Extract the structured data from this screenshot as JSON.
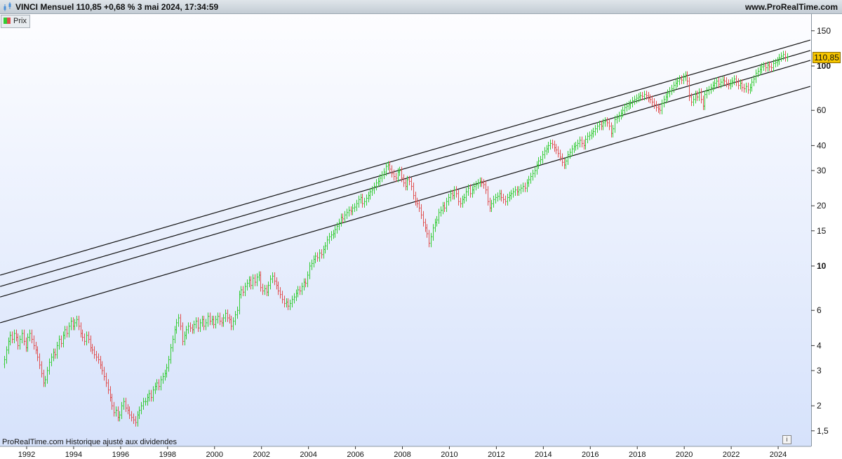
{
  "header": {
    "title": "VINCI Mensuel 110,85 +0,68 % 3 mai 2024, 17:34:59",
    "site": "www.ProRealTime.com"
  },
  "legend": {
    "label": "Prix",
    "colors": [
      "#33cc33",
      "#e05050"
    ]
  },
  "footer": {
    "text": "ProRealTime.com  Historique ajusté aux dividendes",
    "info": "i"
  },
  "last_price_label": "110,85",
  "chart_data": {
    "type": "bar-ohlc",
    "scale": "log",
    "ylim": [
      1.35,
      175
    ],
    "xlim": [
      "1990-11",
      "2025-05"
    ],
    "grid": false,
    "y_ticks": [
      {
        "v": 150,
        "label": "150"
      },
      {
        "v": 100,
        "label": "100",
        "bold": true
      },
      {
        "v": 60,
        "label": "60"
      },
      {
        "v": 40,
        "label": "40"
      },
      {
        "v": 30,
        "label": "30"
      },
      {
        "v": 20,
        "label": "20"
      },
      {
        "v": 15,
        "label": "15"
      },
      {
        "v": 10,
        "label": "10",
        "bold": true
      },
      {
        "v": 6,
        "label": "6"
      },
      {
        "v": 4,
        "label": "4"
      },
      {
        "v": 3,
        "label": "3"
      },
      {
        "v": 2,
        "label": "2"
      },
      {
        "v": 1.5,
        "label": "1,5"
      }
    ],
    "x_ticks": [
      "1992",
      "1994",
      "1996",
      "1998",
      "2000",
      "2002",
      "2004",
      "2006",
      "2008",
      "2010",
      "2012",
      "2014",
      "2016",
      "2018",
      "2020",
      "2022",
      "2024"
    ],
    "start_month": "1991-01",
    "up_color": "#33cc33",
    "down_color": "#e05050",
    "monthly_close": [
      3.4,
      3.8,
      4.2,
      4.5,
      4.3,
      4.6,
      4.4,
      4.0,
      4.3,
      4.6,
      4.2,
      3.9,
      4.4,
      4.6,
      4.3,
      4.0,
      3.8,
      3.5,
      3.2,
      2.9,
      2.6,
      2.7,
      3.0,
      3.3,
      3.5,
      3.7,
      3.6,
      4.0,
      4.3,
      4.1,
      4.5,
      4.8,
      4.6,
      5.0,
      5.3,
      5.0,
      5.2,
      5.4,
      5.0,
      4.6,
      4.4,
      4.2,
      4.5,
      4.3,
      3.9,
      3.8,
      3.6,
      3.5,
      3.4,
      3.2,
      3.0,
      2.8,
      2.6,
      2.4,
      2.2,
      2.0,
      1.85,
      1.9,
      1.75,
      1.8,
      2.0,
      2.1,
      1.95,
      1.9,
      1.8,
      1.75,
      1.7,
      1.65,
      1.8,
      1.9,
      2.0,
      2.1,
      2.1,
      2.2,
      2.3,
      2.2,
      2.4,
      2.5,
      2.6,
      2.5,
      2.7,
      2.8,
      2.9,
      3.1,
      3.4,
      3.9,
      4.3,
      4.8,
      5.2,
      5.5,
      5.0,
      4.2,
      4.5,
      4.8,
      5.0,
      4.9,
      4.8,
      5.1,
      5.3,
      4.9,
      5.2,
      5.4,
      5.0,
      5.2,
      5.6,
      5.3,
      5.4,
      5.1,
      5.4,
      5.6,
      5.3,
      5.2,
      5.5,
      5.8,
      5.5,
      5.4,
      5.0,
      5.3,
      5.7,
      6.0,
      7.2,
      7.6,
      7.4,
      7.9,
      8.2,
      8.5,
      8.0,
      8.7,
      8.3,
      8.8,
      9.0,
      7.8,
      7.5,
      7.7,
      7.4,
      8.0,
      8.6,
      8.9,
      8.4,
      8.0,
      7.5,
      7.2,
      6.8,
      6.5,
      6.6,
      6.3,
      6.5,
      6.8,
      7.0,
      7.3,
      7.6,
      7.5,
      7.9,
      8.3,
      8.2,
      9.0,
      10.0,
      10.3,
      10.8,
      11.2,
      11.0,
      11.6,
      11.4,
      12.1,
      12.6,
      13.5,
      14.0,
      14.3,
      14.5,
      15.2,
      15.8,
      16.5,
      17.5,
      17.2,
      18.0,
      18.5,
      19.0,
      18.8,
      19.5,
      19.7,
      20.5,
      21.5,
      22.0,
      20.5,
      21.0,
      21.8,
      22.5,
      23.5,
      24.0,
      25.0,
      26.0,
      26.5,
      27.5,
      28.5,
      29.5,
      31.5,
      32.0,
      30.5,
      29.0,
      28.0,
      27.5,
      29.5,
      30.0,
      27.5,
      26.0,
      25.0,
      27.0,
      26.5,
      25.0,
      22.5,
      21.0,
      20.5,
      19.5,
      18.0,
      16.5,
      15.5,
      14.5,
      13.0,
      14.0,
      15.5,
      16.5,
      17.0,
      18.5,
      19.0,
      20.0,
      19.5,
      21.0,
      22.0,
      23.0,
      22.5,
      24.0,
      23.0,
      21.0,
      20.5,
      21.5,
      22.0,
      23.5,
      24.5,
      23.0,
      24.0,
      25.0,
      25.5,
      26.0,
      26.5,
      26.0,
      25.5,
      24.0,
      21.0,
      19.5,
      20.5,
      21.5,
      22.0,
      22.3,
      23.0,
      22.0,
      21.5,
      21.0,
      22.0,
      22.5,
      23.0,
      23.5,
      24.0,
      23.5,
      24.0,
      24.5,
      25.0,
      24.5,
      26.0,
      27.0,
      28.0,
      29.0,
      30.0,
      32.0,
      33.5,
      34.0,
      36.0,
      37.6,
      38.5,
      40.0,
      41.0,
      40.5,
      39.0,
      38.0,
      36.5,
      35.0,
      33.0,
      32.0,
      33.5,
      36.0,
      37.0,
      38.5,
      39.5,
      40.0,
      41.0,
      42.5,
      41.0,
      40.0,
      43.0,
      44.5,
      45.0,
      46.0,
      47.0,
      48.5,
      50.0,
      51.0,
      50.0,
      52.0,
      53.0,
      52.0,
      50.0,
      46.0,
      48.5,
      54.0,
      55.0,
      56.5,
      58.0,
      60.0,
      62.0,
      63.0,
      64.0,
      65.0,
      67.0,
      68.0,
      69.0,
      70.0,
      71.0,
      70.5,
      72.0,
      71.0,
      69.0,
      68.0,
      66.0,
      64.0,
      62.0,
      61.0,
      60.0,
      65.0,
      68.0,
      70.0,
      73.0,
      75.0,
      77.0,
      80.0,
      82.0,
      84.0,
      86.0,
      85.0,
      88.0,
      90.0,
      84.0,
      70.0,
      66.0,
      68.0,
      72.0,
      70.0,
      74.0,
      68.0,
      63.0,
      72.0,
      75.0,
      76.0,
      78.0,
      80.0,
      82.0,
      84.0,
      81.0,
      83.0,
      85.0,
      84.0,
      82.0,
      80.0,
      82.0,
      84.0,
      86.0,
      83.0,
      80.0,
      82.0,
      78.0,
      77.0,
      79.0,
      76.0,
      78.0,
      83.0,
      86.0,
      92.0,
      94.0,
      96.0,
      99.0,
      100.0,
      98.0,
      101.0,
      99.0,
      98.0,
      103.0,
      104.0,
      106.0,
      110.0,
      112.0,
      114.0,
      110.1,
      110.85
    ],
    "trend_lines": [
      {
        "from": [
          1990.87,
          9.0
        ],
        "to": [
          2025.37,
          134.8
        ]
      },
      {
        "from": [
          1990.87,
          7.9
        ],
        "to": [
          2025.37,
          119.5
        ]
      },
      {
        "from": [
          1990.87,
          7.0
        ],
        "to": [
          2025.37,
          106.7
        ]
      },
      {
        "from": [
          1990.87,
          5.2
        ],
        "to": [
          2025.37,
          79.1
        ]
      }
    ]
  }
}
